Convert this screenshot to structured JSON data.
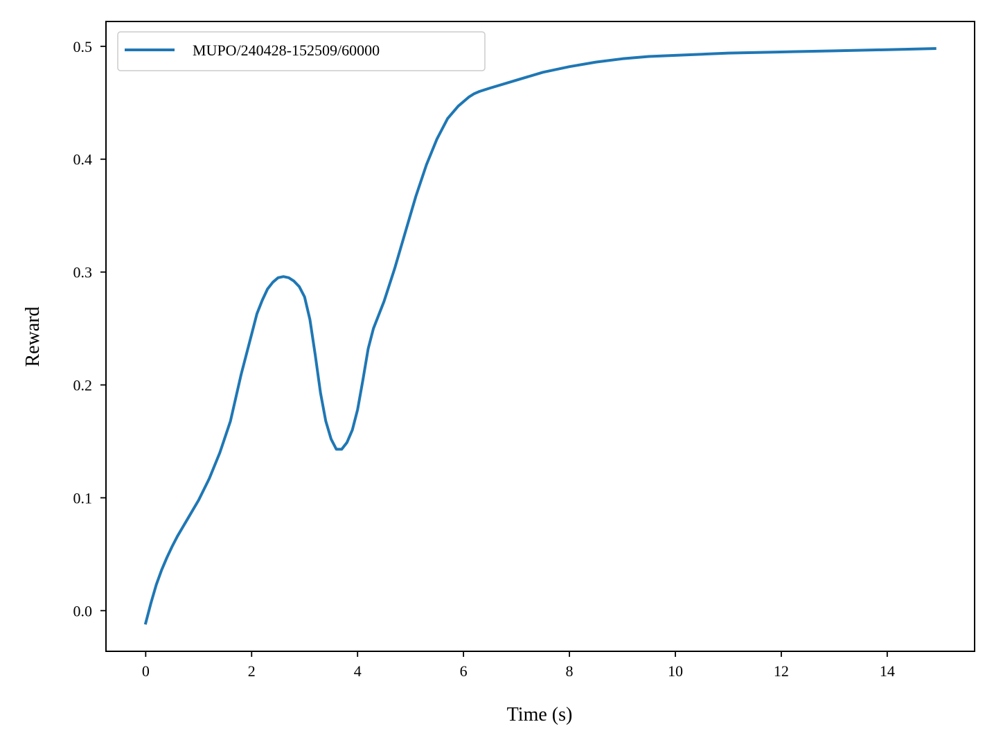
{
  "chart_data": {
    "type": "line",
    "title": "",
    "xlabel": "Time (s)",
    "ylabel": "Reward",
    "xlim": [
      -0.75,
      15.65
    ],
    "ylim": [
      -0.036,
      0.522
    ],
    "xticks": [
      0,
      2,
      4,
      6,
      8,
      10,
      12,
      14
    ],
    "xtick_labels": [
      "0",
      "2",
      "4",
      "6",
      "8",
      "10",
      "12",
      "14"
    ],
    "yticks": [
      0.0,
      0.1,
      0.2,
      0.3,
      0.4,
      0.5
    ],
    "ytick_labels": [
      "0.0",
      "0.1",
      "0.2",
      "0.3",
      "0.4",
      "0.5"
    ],
    "grid": false,
    "legend_position": "upper-left",
    "series": [
      {
        "name": "MUPO/240428-152509/60000",
        "color": "#1f77b4",
        "x": [
          0,
          0.1,
          0.2,
          0.3,
          0.4,
          0.5,
          0.6,
          0.8,
          1.0,
          1.2,
          1.4,
          1.6,
          1.8,
          2.0,
          2.1,
          2.2,
          2.3,
          2.4,
          2.5,
          2.6,
          2.7,
          2.8,
          2.9,
          3.0,
          3.1,
          3.2,
          3.3,
          3.4,
          3.5,
          3.6,
          3.7,
          3.8,
          3.9,
          4.0,
          4.1,
          4.2,
          4.3,
          4.5,
          4.7,
          4.9,
          5.1,
          5.3,
          5.5,
          5.7,
          5.9,
          6.1,
          6.2,
          6.3,
          6.5,
          7.0,
          7.5,
          8.0,
          8.5,
          9.0,
          9.5,
          10.0,
          11.0,
          12.0,
          13.0,
          14.0,
          14.9
        ],
        "y": [
          -0.011,
          0.007,
          0.023,
          0.036,
          0.047,
          0.057,
          0.066,
          0.082,
          0.098,
          0.117,
          0.14,
          0.168,
          0.209,
          0.245,
          0.263,
          0.275,
          0.285,
          0.291,
          0.295,
          0.296,
          0.295,
          0.292,
          0.287,
          0.278,
          0.258,
          0.227,
          0.193,
          0.168,
          0.152,
          0.143,
          0.143,
          0.149,
          0.16,
          0.178,
          0.204,
          0.232,
          0.25,
          0.274,
          0.303,
          0.335,
          0.367,
          0.395,
          0.418,
          0.436,
          0.447,
          0.455,
          0.458,
          0.46,
          0.463,
          0.47,
          0.477,
          0.482,
          0.486,
          0.489,
          0.491,
          0.492,
          0.494,
          0.495,
          0.496,
          0.497,
          0.498
        ]
      }
    ]
  }
}
